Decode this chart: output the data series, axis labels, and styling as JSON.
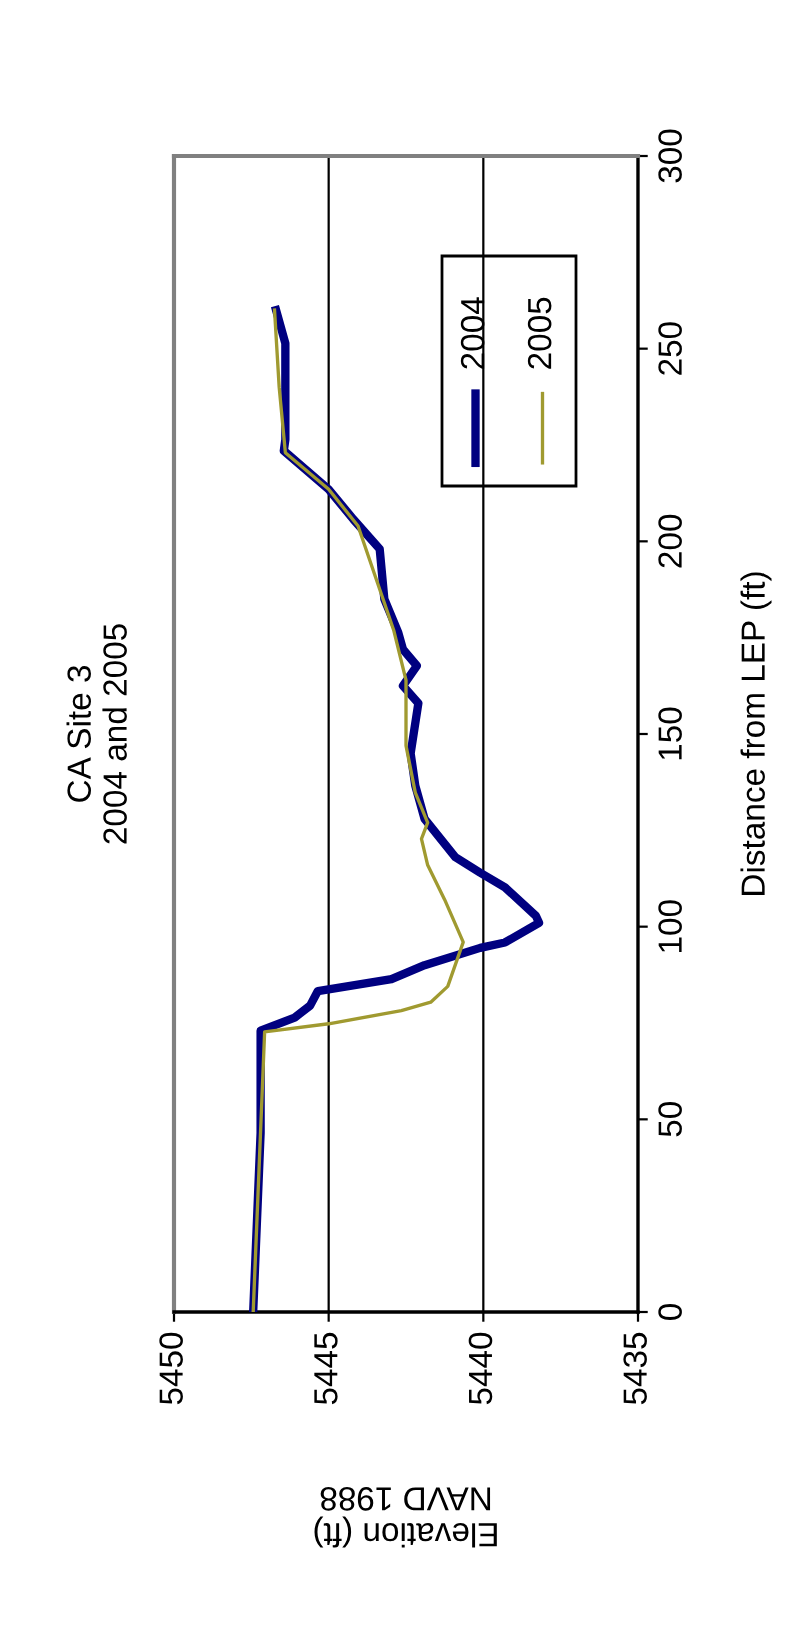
{
  "chart_data": {
    "type": "line",
    "title": "CA Site 3\n2004 and 2005",
    "xlabel": "Elevation (ft)\nNAVD 1988",
    "ylabel": "Distance from LEP (ft)",
    "xlim": [
      5450,
      5435
    ],
    "xticks": [
      5450,
      5445,
      5440,
      5435
    ],
    "ylim": [
      0,
      300
    ],
    "yticks": [
      0,
      50,
      100,
      150,
      200,
      250,
      300
    ],
    "grid": "x",
    "legend": "top right",
    "marker": "none",
    "line_style": "solid",
    "series": [
      {
        "name": "2004",
        "color": "#000080",
        "values": [
          0,
          46.5,
          73,
          76.4,
          79.5,
          83.3,
          86.4,
          90,
          94.5,
          95.9,
          101,
          102.8,
          110.2,
          114,
          118,
          128,
          136.6,
          145,
          158,
          162.5,
          167.7,
          172,
          176.3,
          185,
          198,
          205.7,
          213.5,
          223.5,
          226.4,
          251.4,
          260
        ],
        "x": [
          5447.44,
          5447.2,
          5447.2,
          5446.1,
          5445.6,
          5445.35,
          5442.97,
          5441.9,
          5440.1,
          5439.3,
          5438.2,
          5438.3,
          5439.3,
          5440.1,
          5440.9,
          5441.9,
          5442.2,
          5442.35,
          5442.1,
          5442.6,
          5442.15,
          5442.6,
          5442.75,
          5443.2,
          5443.35,
          5444.2,
          5445.0,
          5446.45,
          5446.4,
          5446.4,
          5446.7
        ]
      },
      {
        "name": "2005",
        "color": "#a09a30",
        "values": [
          0,
          72.7,
          74.8,
          78.2,
          80.4,
          84.5,
          96,
          107,
          116,
          122.8,
          127,
          134.8,
          147,
          164,
          177,
          204,
          213.5,
          223,
          240,
          260
        ],
        "x": [
          5447.44,
          5447.07,
          5445.0,
          5442.65,
          5441.7,
          5441.15,
          5440.65,
          5441.25,
          5441.8,
          5442.0,
          5441.8,
          5442.2,
          5442.5,
          5442.5,
          5442.9,
          5444.05,
          5445.0,
          5446.4,
          5446.6,
          5446.75
        ]
      }
    ]
  }
}
